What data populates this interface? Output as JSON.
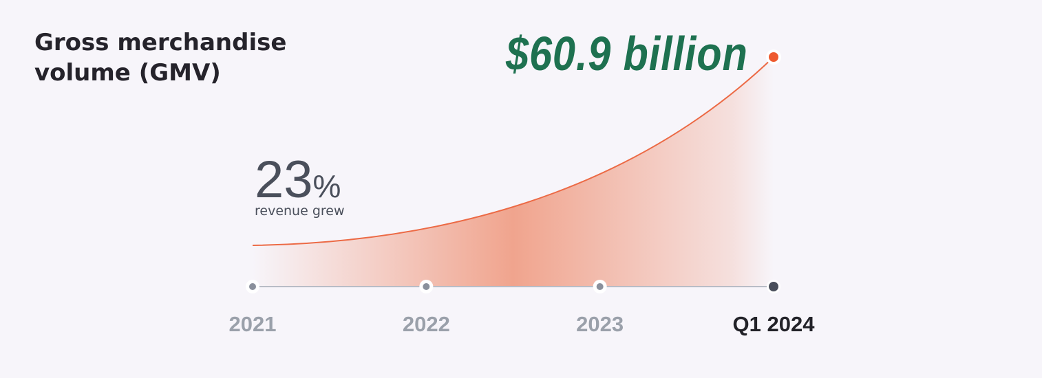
{
  "title": "Gross merchandise volume (GMV)",
  "headline": "$60.9 billion",
  "stat": {
    "number": "23",
    "unit": "%",
    "caption": "revenue grew"
  },
  "timeline": [
    "2021",
    "2022",
    "2023",
    "Q1 2024"
  ]
}
